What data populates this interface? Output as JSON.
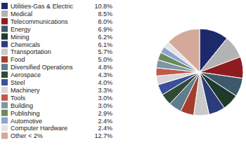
{
  "chart_data": {
    "type": "pie",
    "categories": [
      "Utilities-Gas & Electric",
      "Medical",
      "Telecommunications",
      "Energy",
      "Mining",
      "Chemicals",
      "Transportation",
      "Food",
      "Diversified Operations",
      "Aerospace",
      "Steel",
      "Machinery",
      "Tools",
      "Building",
      "Publishing",
      "Automotive",
      "Computer Hardware",
      "Other < 2%"
    ],
    "values": [
      10.8,
      8.5,
      8.0,
      6.9,
      6.2,
      6.1,
      5.7,
      5.0,
      4.8,
      4.3,
      4.0,
      3.3,
      3.0,
      3.0,
      2.9,
      2.4,
      2.4,
      12.7
    ],
    "value_labels": [
      "10.8%",
      "8.5%",
      "8.0%",
      "6.9%",
      "6.2%",
      "6.1%",
      "5.7%",
      "5.0%",
      "4.8%",
      "4.3%",
      "4.0%",
      "3.3%",
      "3.0%",
      "3.0%",
      "2.9%",
      "2.4%",
      "2.4%",
      "12.7%"
    ],
    "colors": [
      "#1c2a6b",
      "#b3b3b3",
      "#8e1c1f",
      "#3d5a6c",
      "#1f3a2a",
      "#2b3b7c",
      "#c9c9c9",
      "#a63d2c",
      "#5f7d8c",
      "#2f4b33",
      "#3b4f9c",
      "#d6d6d6",
      "#c4594b",
      "#7c97a6",
      "#6b8a5c",
      "#8ea3d2",
      "#e4e4e4",
      "#d4a99b"
    ],
    "legend": "left"
  }
}
